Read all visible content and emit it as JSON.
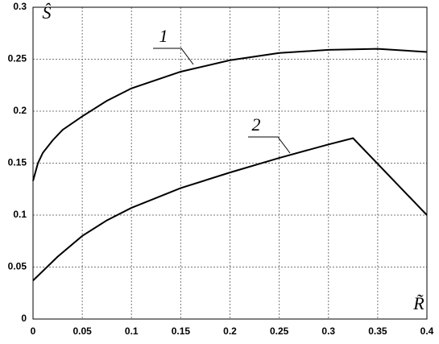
{
  "chart_data": {
    "type": "line",
    "x_label": "R̃",
    "y_label": "Ŝ",
    "xlim": [
      0,
      0.4
    ],
    "ylim": [
      0,
      0.3
    ],
    "xticks": [
      0,
      0.05,
      0.1,
      0.15,
      0.2,
      0.25,
      0.3,
      0.35,
      0.4
    ],
    "yticks": [
      0,
      0.05,
      0.1,
      0.15,
      0.2,
      0.25,
      0.3
    ],
    "grid": true,
    "series": [
      {
        "name": "1",
        "color": "#000000",
        "x": [
          0,
          0.005,
          0.01,
          0.02,
          0.03,
          0.05,
          0.075,
          0.1,
          0.15,
          0.2,
          0.25,
          0.3,
          0.35,
          0.4
        ],
        "values": [
          0.133,
          0.15,
          0.16,
          0.172,
          0.182,
          0.195,
          0.21,
          0.222,
          0.238,
          0.249,
          0.256,
          0.259,
          0.26,
          0.257
        ]
      },
      {
        "name": "2",
        "color": "#000000",
        "x": [
          0,
          0.025,
          0.05,
          0.075,
          0.1,
          0.15,
          0.2,
          0.25,
          0.3,
          0.325,
          0.4
        ],
        "values": [
          0.037,
          0.06,
          0.08,
          0.095,
          0.107,
          0.126,
          0.141,
          0.155,
          0.168,
          0.174,
          0.1
        ]
      }
    ]
  }
}
